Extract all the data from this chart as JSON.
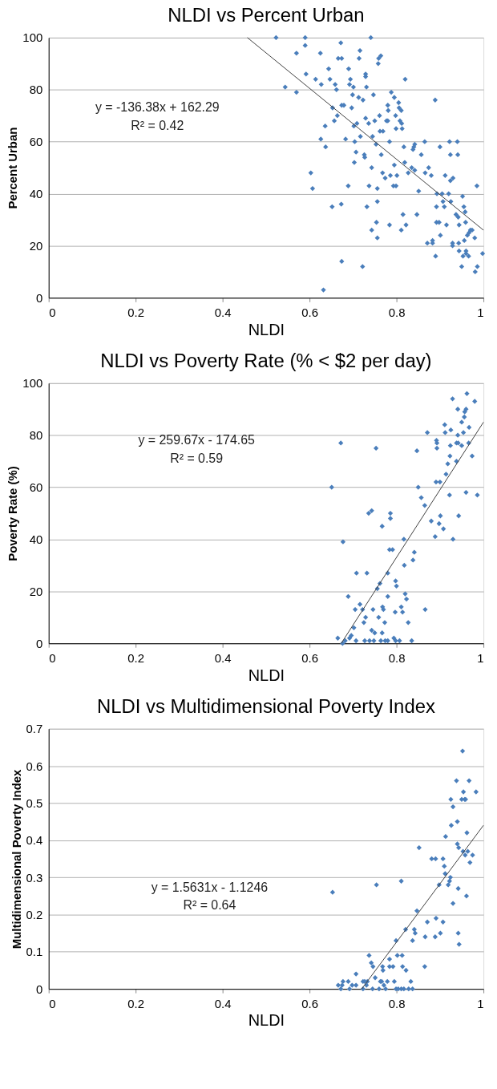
{
  "chart_data": [
    {
      "type": "scatter",
      "title": "NLDI vs Percent Urban",
      "xlabel": "NLDI",
      "ylabel": "Percent Urban",
      "xlim": [
        0,
        1
      ],
      "ylim": [
        0,
        100
      ],
      "xticks": [
        0,
        0.2,
        0.4,
        0.6,
        0.8,
        1
      ],
      "yticks": [
        0,
        20,
        40,
        60,
        80,
        100
      ],
      "grid": "y",
      "marker": "diamond",
      "annotations": [
        "y = -136.38x + 162.29",
        "R² = 0.42"
      ],
      "series": [
        {
          "color": "#4a7ebb",
          "x": [
            0.523,
            0.544,
            0.57,
            0.57,
            0.59,
            0.59,
            0.592,
            0.603,
            0.607,
            0.614,
            0.625,
            0.627,
            0.626,
            0.632,
            0.636,
            0.637,
            0.644,
            0.647,
            0.652,
            0.653,
            0.657,
            0.659,
            0.662,
            0.664,
            0.666,
            0.672,
            0.673,
            0.674,
            0.674,
            0.674,
            0.679,
            0.683,
            0.689,
            0.69,
            0.692,
            0.694,
            0.697,
            0.699,
            0.701,
            0.702,
            0.704,
            0.703,
            0.707,
            0.709,
            0.713,
            0.714,
            0.716,
            0.717,
            0.723,
            0.722,
            0.726,
            0.727,
            0.729,
            0.729,
            0.729,
            0.731,
            0.732,
            0.736,
            0.737,
            0.741,
            0.743,
            0.743,
            0.745,
            0.747,
            0.75,
            0.753,
            0.754,
            0.756,
            0.756,
            0.756,
            0.758,
            0.759,
            0.761,
            0.762,
            0.764,
            0.765,
            0.768,
            0.769,
            0.774,
            0.777,
            0.78,
            0.78,
            0.781,
            0.784,
            0.784,
            0.786,
            0.788,
            0.793,
            0.795,
            0.795,
            0.798,
            0.799,
            0.799,
            0.801,
            0.805,
            0.806,
            0.808,
            0.811,
            0.811,
            0.812,
            0.813,
            0.815,
            0.817,
            0.819,
            0.82,
            0.822,
            0.827,
            0.835,
            0.838,
            0.84,
            0.842,
            0.842,
            0.847,
            0.851,
            0.857,
            0.865,
            0.866,
            0.871,
            0.874,
            0.88,
            0.883,
            0.883,
            0.889,
            0.89,
            0.892,
            0.893,
            0.892,
            0.898,
            0.9,
            0.901,
            0.905,
            0.907,
            0.91,
            0.912,
            0.915,
            0.92,
            0.922,
            0.924,
            0.925,
            0.924,
            0.93,
            0.929,
            0.929,
            0.937,
            0.94,
            0.941,
            0.942,
            0.944,
            0.943,
            0.944,
            0.95,
            0.952,
            0.953,
            0.955,
            0.956,
            0.958,
            0.96,
            0.96,
            0.959,
            0.963,
            0.967,
            0.97,
            0.974,
            0.966,
            0.98,
            0.981,
            0.985,
            0.986,
            0.998
          ],
          "values": [
            100,
            81,
            94,
            79,
            100,
            97,
            86,
            48,
            42,
            84,
            94,
            82,
            61,
            3,
            66,
            58,
            88,
            84,
            35,
            73,
            68,
            82,
            80,
            70,
            92,
            98,
            36,
            74,
            92,
            14,
            74,
            61,
            43,
            88,
            82,
            84,
            73,
            78,
            81,
            66,
            60,
            52,
            56,
            67,
            77,
            92,
            95,
            62,
            76,
            12,
            55,
            54,
            86,
            85,
            69,
            81,
            35,
            67,
            43,
            100,
            26,
            50,
            62,
            78,
            68,
            59,
            29,
            42,
            37,
            23,
            90,
            92,
            70,
            64,
            93,
            55,
            48,
            64,
            46,
            68,
            68,
            74,
            72,
            60,
            28,
            47,
            79,
            43,
            51,
            77,
            70,
            65,
            43,
            47,
            75,
            73,
            68,
            26,
            72,
            67,
            65,
            32,
            58,
            52,
            84,
            28,
            48,
            50,
            57,
            58,
            59,
            49,
            32,
            41,
            55,
            60,
            48,
            21,
            50,
            47,
            22,
            21,
            76,
            16,
            35,
            40,
            29,
            29,
            58,
            24,
            40,
            37,
            35,
            47,
            28,
            40,
            60,
            55,
            37,
            45,
            46,
            21,
            20,
            32,
            60,
            55,
            31,
            28,
            21,
            18,
            12,
            39,
            16,
            35,
            22,
            33,
            18,
            17,
            29,
            24,
            25,
            26,
            26,
            16,
            23,
            10,
            43,
            12,
            17
          ]
        },
        {
          "type": "line",
          "color": "#404040",
          "marker": "none",
          "line_style": "solid",
          "x": [
            0.457,
            1
          ],
          "values": [
            100,
            26
          ]
        }
      ]
    },
    {
      "type": "scatter",
      "title": "NLDI vs Poverty Rate (% < $2 per day)",
      "xlabel": "NLDI",
      "ylabel": "Poverty Rate (%)",
      "xlim": [
        0,
        1
      ],
      "ylim": [
        0,
        100
      ],
      "xticks": [
        0,
        0.2,
        0.4,
        0.6,
        0.8,
        1
      ],
      "yticks": [
        0,
        20,
        40,
        60,
        80,
        100
      ],
      "grid": "y",
      "marker": "diamond",
      "annotations": [
        "y = 259.67x - 174.65",
        "R² = 0.59"
      ],
      "series": [
        {
          "color": "#4a7ebb",
          "x": [
            0.651,
            0.665,
            0.672,
            0.677,
            0.676,
            0.682,
            0.689,
            0.692,
            0.696,
            0.702,
            0.705,
            0.708,
            0.707,
            0.716,
            0.722,
            0.725,
            0.727,
            0.729,
            0.732,
            0.736,
            0.738,
            0.743,
            0.743,
            0.746,
            0.748,
            0.75,
            0.753,
            0.756,
            0.759,
            0.762,
            0.764,
            0.767,
            0.767,
            0.768,
            0.77,
            0.773,
            0.774,
            0.78,
            0.78,
            0.78,
            0.784,
            0.786,
            0.786,
            0.791,
            0.794,
            0.797,
            0.798,
            0.8,
            0.798,
            0.807,
            0.811,
            0.814,
            0.817,
            0.818,
            0.82,
            0.823,
            0.827,
            0.835,
            0.838,
            0.841,
            0.847,
            0.85,
            0.857,
            0.865,
            0.866,
            0.871,
            0.88,
            0.889,
            0.892,
            0.893,
            0.893,
            0.891,
            0.898,
            0.9,
            0.901,
            0.908,
            0.911,
            0.912,
            0.914,
            0.918,
            0.922,
            0.923,
            0.924,
            0.925,
            0.929,
            0.93,
            0.938,
            0.938,
            0.941,
            0.941,
            0.942,
            0.943,
            0.95,
            0.95,
            0.954,
            0.956,
            0.957,
            0.96,
            0.96,
            0.962,
            0.967,
            0.966,
            0.974,
            0.98,
            0.986
          ],
          "values": [
            60,
            2,
            77,
            39,
            0,
            1,
            18,
            2,
            3,
            6,
            13,
            27,
            1,
            15,
            13,
            8,
            1,
            10,
            27,
            50,
            1,
            51,
            5,
            13,
            1,
            4,
            75,
            21,
            10,
            23,
            1,
            45,
            4,
            14,
            13,
            8,
            1,
            27,
            18,
            1,
            36,
            50,
            48,
            36,
            2,
            12,
            24,
            22,
            1,
            1,
            14,
            12,
            40,
            30,
            19,
            17,
            8,
            1,
            32,
            35,
            74,
            60,
            56,
            53,
            13,
            81,
            47,
            41,
            78,
            77,
            75,
            62,
            46,
            62,
            49,
            44,
            84,
            81,
            65,
            69,
            57,
            72,
            76,
            82,
            94,
            40,
            77,
            70,
            90,
            80,
            77,
            49,
            85,
            76,
            81,
            87,
            89,
            90,
            58,
            96,
            83,
            77,
            72,
            93,
            57
          ]
        },
        {
          "type": "line",
          "color": "#404040",
          "marker": "none",
          "line_style": "solid",
          "x": [
            0.673,
            1
          ],
          "values": [
            0,
            85
          ]
        }
      ]
    },
    {
      "type": "scatter",
      "title": "NLDI vs Multidimensional Poverty Index",
      "xlabel": "NLDI",
      "ylabel": "Multidimensional Poverty Index",
      "xlim": [
        0,
        1
      ],
      "ylim": [
        0,
        0.7
      ],
      "xticks": [
        0,
        0.2,
        0.4,
        0.6,
        0.8,
        1
      ],
      "yticks": [
        0,
        0.1,
        0.2,
        0.3,
        0.4,
        0.5,
        0.6,
        0.7
      ],
      "grid": "y",
      "marker": "diamond",
      "annotations": [
        "y = 1.5631x - 1.1246",
        "R² = 0.64"
      ],
      "series": [
        {
          "color": "#4a7ebb",
          "x": [
            0.653,
            0.666,
            0.672,
            0.677,
            0.675,
            0.689,
            0.692,
            0.698,
            0.707,
            0.707,
            0.723,
            0.723,
            0.727,
            0.731,
            0.733,
            0.737,
            0.742,
            0.746,
            0.745,
            0.751,
            0.754,
            0.76,
            0.763,
            0.766,
            0.768,
            0.769,
            0.771,
            0.775,
            0.779,
            0.784,
            0.784,
            0.792,
            0.795,
            0.799,
            0.799,
            0.802,
            0.804,
            0.811,
            0.813,
            0.814,
            0.811,
            0.817,
            0.821,
            0.822,
            0.828,
            0.833,
            0.837,
            0.837,
            0.841,
            0.843,
            0.847,
            0.852,
            0.865,
            0.866,
            0.871,
            0.881,
            0.889,
            0.891,
            0.89,
            0.901,
            0.898,
            0.907,
            0.907,
            0.91,
            0.912,
            0.913,
            0.919,
            0.922,
            0.924,
            0.925,
            0.926,
            0.93,
            0.93,
            0.938,
            0.94,
            0.94,
            0.943,
            0.942,
            0.942,
            0.944,
            0.95,
            0.952,
            0.953,
            0.954,
            0.957,
            0.959,
            0.958,
            0.961,
            0.962,
            0.964,
            0.967,
            0.969,
            0.975,
            0.983
          ],
          "values": [
            0.26,
            0.01,
            0.0,
            0.02,
            0.01,
            0.02,
            0.0,
            0.01,
            0.04,
            0.01,
            0.02,
            0.0,
            0.02,
            0.01,
            0.02,
            0.09,
            0.07,
            0.06,
            0.0,
            0.03,
            0.28,
            0.0,
            0.02,
            0.02,
            0.06,
            0.05,
            0.01,
            0.0,
            0.02,
            0.08,
            0.06,
            0.06,
            0.02,
            0.13,
            0.0,
            0.09,
            0.0,
            0.29,
            0.09,
            0.06,
            0.0,
            0.0,
            0.16,
            0.05,
            0.0,
            0.02,
            0.0,
            0.13,
            0.16,
            0.15,
            0.21,
            0.38,
            0.06,
            0.14,
            0.18,
            0.35,
            0.14,
            0.19,
            0.35,
            0.15,
            0.28,
            0.18,
            0.35,
            0.33,
            0.31,
            0.41,
            0.28,
            0.29,
            0.3,
            0.51,
            0.44,
            0.49,
            0.23,
            0.56,
            0.45,
            0.39,
            0.38,
            0.27,
            0.15,
            0.12,
            0.51,
            0.64,
            0.37,
            0.53,
            0.51,
            0.51,
            0.36,
            0.25,
            0.42,
            0.37,
            0.56,
            0.34,
            0.36,
            0.53
          ]
        },
        {
          "type": "line",
          "color": "#404040",
          "marker": "none",
          "line_style": "solid",
          "x": [
            0.72,
            1
          ],
          "values": [
            0.0,
            0.44
          ]
        }
      ]
    }
  ]
}
